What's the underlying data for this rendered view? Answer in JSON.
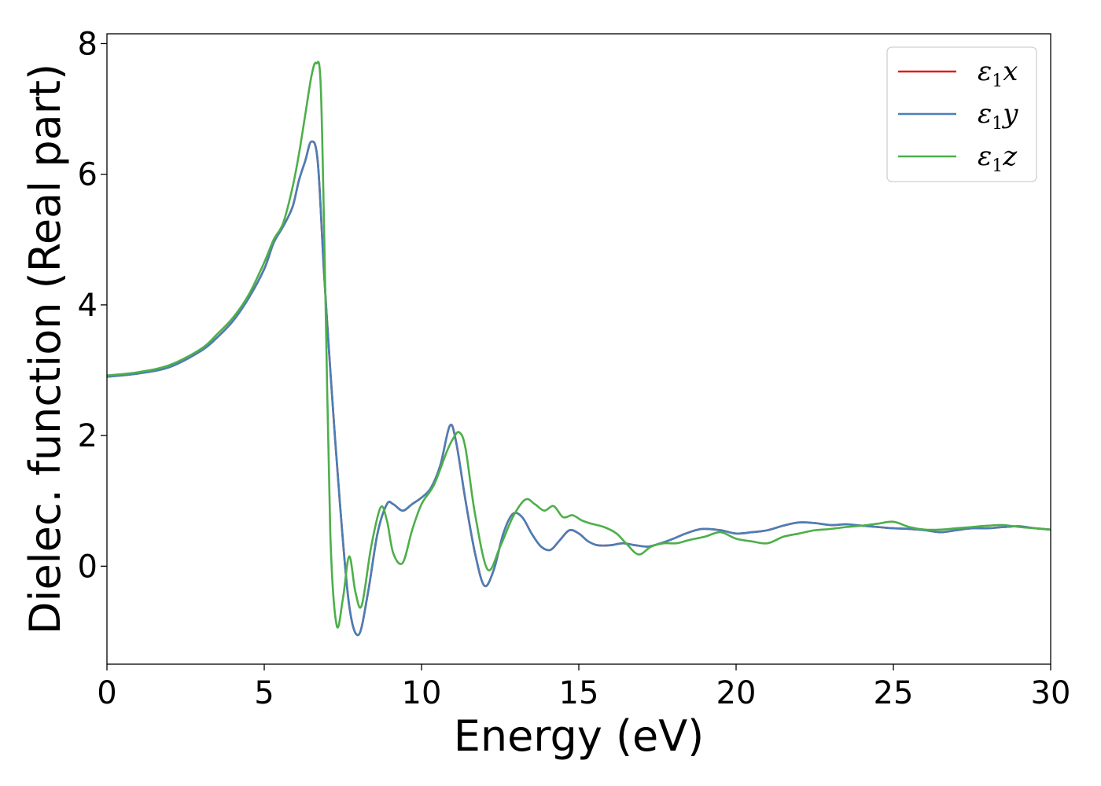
{
  "chart_data": {
    "type": "line",
    "title": "",
    "xlabel": "Energy (eV)",
    "ylabel": "Dielec. function (Real part)",
    "xlim": [
      0,
      30
    ],
    "ylim": [
      -1.5,
      8.15
    ],
    "xticks": [
      0,
      5,
      10,
      15,
      20,
      25,
      30
    ],
    "yticks": [
      0,
      2,
      4,
      6,
      8
    ],
    "grid": false,
    "legend_position": "top-right",
    "series": [
      {
        "name": "ε1x",
        "legend_symbol": "ε",
        "legend_sub": "1",
        "legend_var": "x",
        "color": "#e41a1c",
        "x": [
          0,
          1,
          2,
          3,
          3.5,
          4,
          4.5,
          5,
          5.3,
          5.6,
          5.9,
          6.1,
          6.3,
          6.5,
          6.7,
          6.9,
          7.1,
          7.4,
          7.7,
          8.0,
          8.3,
          8.6,
          8.9,
          9.1,
          9.4,
          9.7,
          10.0,
          10.3,
          10.6,
          10.9,
          11.1,
          11.4,
          11.7,
          12.0,
          12.3,
          12.6,
          12.9,
          13.2,
          13.5,
          13.8,
          14.1,
          14.4,
          14.7,
          15.0,
          15.3,
          15.6,
          16.0,
          16.4,
          16.8,
          17.2,
          17.6,
          18.0,
          18.4,
          18.9,
          19.5,
          20.0,
          20.5,
          21.0,
          21.5,
          22.0,
          22.5,
          23.0,
          23.5,
          24.0,
          24.5,
          25.0,
          25.5,
          26.0,
          26.5,
          27.0,
          27.5,
          28.0,
          28.5,
          29.0,
          29.5,
          30.0
        ],
        "y": [
          2.9,
          2.95,
          3.05,
          3.3,
          3.5,
          3.75,
          4.1,
          4.55,
          4.95,
          5.2,
          5.5,
          5.9,
          6.2,
          6.5,
          6.2,
          4.5,
          3.0,
          1.0,
          -0.6,
          -1.05,
          -0.4,
          0.5,
          0.95,
          0.95,
          0.85,
          0.95,
          1.05,
          1.2,
          1.55,
          2.15,
          1.9,
          1.0,
          0.2,
          -0.3,
          -0.05,
          0.5,
          0.8,
          0.75,
          0.5,
          0.3,
          0.25,
          0.4,
          0.55,
          0.5,
          0.38,
          0.32,
          0.32,
          0.35,
          0.32,
          0.3,
          0.35,
          0.42,
          0.5,
          0.57,
          0.55,
          0.5,
          0.52,
          0.55,
          0.62,
          0.67,
          0.66,
          0.63,
          0.64,
          0.62,
          0.6,
          0.58,
          0.57,
          0.55,
          0.52,
          0.55,
          0.58,
          0.58,
          0.6,
          0.61,
          0.58,
          0.56
        ]
      },
      {
        "name": "ε1y",
        "legend_symbol": "ε",
        "legend_sub": "1",
        "legend_var": "y",
        "color": "#4a7fb5",
        "x": [
          0,
          1,
          2,
          3,
          3.5,
          4,
          4.5,
          5,
          5.3,
          5.6,
          5.9,
          6.1,
          6.3,
          6.5,
          6.7,
          6.9,
          7.1,
          7.4,
          7.7,
          8.0,
          8.3,
          8.6,
          8.9,
          9.1,
          9.4,
          9.7,
          10.0,
          10.3,
          10.6,
          10.9,
          11.1,
          11.4,
          11.7,
          12.0,
          12.3,
          12.6,
          12.9,
          13.2,
          13.5,
          13.8,
          14.1,
          14.4,
          14.7,
          15.0,
          15.3,
          15.6,
          16.0,
          16.4,
          16.8,
          17.2,
          17.6,
          18.0,
          18.4,
          18.9,
          19.5,
          20.0,
          20.5,
          21.0,
          21.5,
          22.0,
          22.5,
          23.0,
          23.5,
          24.0,
          24.5,
          25.0,
          25.5,
          26.0,
          26.5,
          27.0,
          27.5,
          28.0,
          28.5,
          29.0,
          29.5,
          30.0
        ],
        "y": [
          2.9,
          2.95,
          3.05,
          3.3,
          3.5,
          3.75,
          4.1,
          4.55,
          4.95,
          5.2,
          5.5,
          5.9,
          6.2,
          6.5,
          6.2,
          4.5,
          3.0,
          1.0,
          -0.6,
          -1.05,
          -0.4,
          0.5,
          0.95,
          0.95,
          0.85,
          0.95,
          1.05,
          1.2,
          1.55,
          2.15,
          1.9,
          1.0,
          0.2,
          -0.3,
          -0.05,
          0.5,
          0.8,
          0.75,
          0.5,
          0.3,
          0.25,
          0.4,
          0.55,
          0.5,
          0.38,
          0.32,
          0.32,
          0.35,
          0.32,
          0.3,
          0.35,
          0.42,
          0.5,
          0.57,
          0.55,
          0.5,
          0.52,
          0.55,
          0.62,
          0.67,
          0.66,
          0.63,
          0.64,
          0.62,
          0.6,
          0.58,
          0.57,
          0.55,
          0.52,
          0.55,
          0.58,
          0.58,
          0.6,
          0.61,
          0.58,
          0.56
        ]
      },
      {
        "name": "ε1z",
        "legend_symbol": "ε",
        "legend_sub": "1",
        "legend_var": "z",
        "color": "#4daf4a",
        "x": [
          0,
          1,
          2,
          3,
          3.5,
          4,
          4.5,
          5,
          5.3,
          5.6,
          5.9,
          6.1,
          6.3,
          6.5,
          6.65,
          6.8,
          6.95,
          7.1,
          7.3,
          7.5,
          7.7,
          7.9,
          8.1,
          8.4,
          8.7,
          8.9,
          9.1,
          9.4,
          9.7,
          10.0,
          10.4,
          10.8,
          11.0,
          11.2,
          11.4,
          11.7,
          12.1,
          12.5,
          12.9,
          13.3,
          13.6,
          13.9,
          14.2,
          14.5,
          14.8,
          15.1,
          15.4,
          15.8,
          16.2,
          16.5,
          16.9,
          17.3,
          17.7,
          18.1,
          18.5,
          19.0,
          19.5,
          20.0,
          20.5,
          21.0,
          21.5,
          22.0,
          22.5,
          23.0,
          23.5,
          24.0,
          24.5,
          25.0,
          25.5,
          26.0,
          26.5,
          27.0,
          27.5,
          28.0,
          28.5,
          29.0,
          29.5,
          30.0
        ],
        "y": [
          2.92,
          2.97,
          3.08,
          3.33,
          3.55,
          3.8,
          4.15,
          4.65,
          5.0,
          5.25,
          5.8,
          6.3,
          6.9,
          7.5,
          7.7,
          7.3,
          4.0,
          0.5,
          -0.9,
          -0.5,
          0.15,
          -0.4,
          -0.6,
          0.3,
          0.9,
          0.7,
          0.2,
          0.05,
          0.55,
          0.95,
          1.25,
          1.75,
          1.95,
          2.05,
          1.8,
          0.8,
          -0.05,
          0.3,
          0.75,
          1.02,
          0.95,
          0.85,
          0.92,
          0.75,
          0.78,
          0.7,
          0.65,
          0.6,
          0.5,
          0.35,
          0.18,
          0.3,
          0.35,
          0.35,
          0.4,
          0.45,
          0.52,
          0.42,
          0.38,
          0.35,
          0.45,
          0.5,
          0.55,
          0.57,
          0.6,
          0.62,
          0.65,
          0.68,
          0.6,
          0.56,
          0.56,
          0.58,
          0.6,
          0.62,
          0.63,
          0.6,
          0.58,
          0.56
        ]
      }
    ]
  }
}
